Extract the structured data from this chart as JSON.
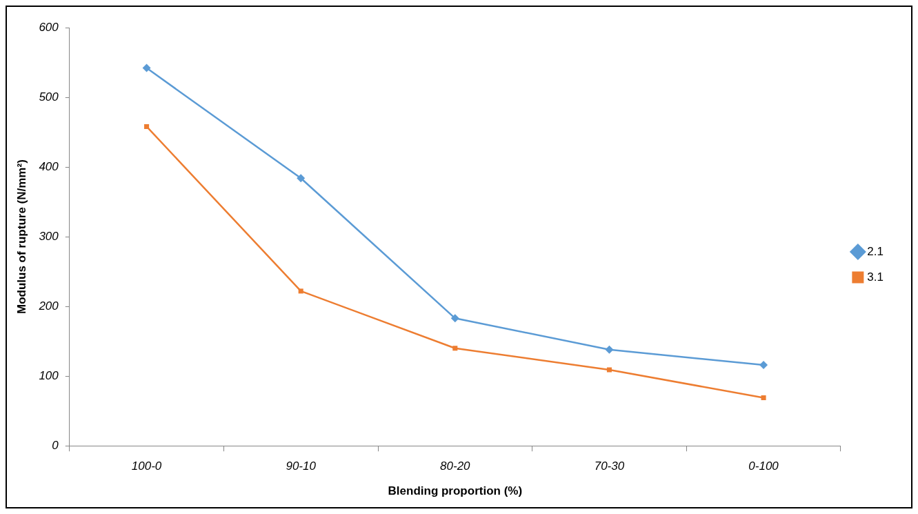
{
  "chart_data": {
    "type": "line",
    "xlabel": "Blending proportion (%)",
    "ylabel": "Modulus of rupture (N/mm²)",
    "categories": [
      "100-0",
      "90-10",
      "80-20",
      "70-30",
      "0-100"
    ],
    "series": [
      {
        "name": "2.1",
        "color": "#5b9bd5",
        "marker": "diamond",
        "values": [
          542,
          384,
          183,
          138,
          116
        ]
      },
      {
        "name": "3.1",
        "color": "#ed7d31",
        "marker": "square",
        "values": [
          458,
          222,
          140,
          109,
          69
        ]
      }
    ],
    "ylim": [
      0,
      600
    ],
    "yticks": [
      0,
      100,
      200,
      300,
      400,
      500,
      600
    ],
    "grid": false,
    "legend": "right",
    "line_style": "solid"
  }
}
